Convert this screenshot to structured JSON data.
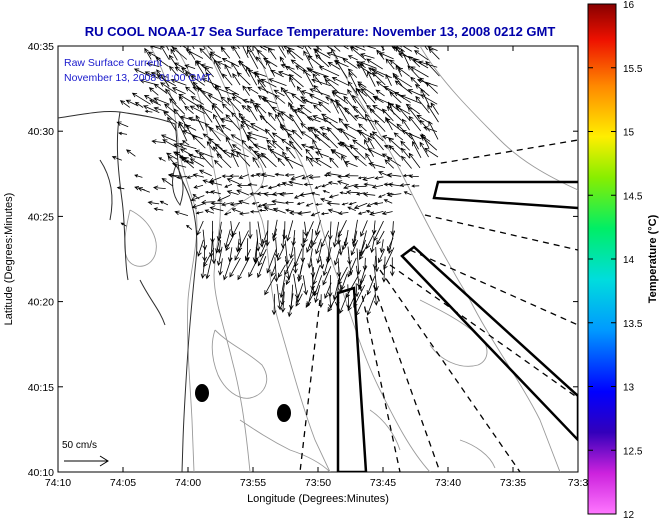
{
  "title": "RU COOL  NOAA-17  Sea Surface Temperature:  November 13, 2008 0212 GMT",
  "legend": {
    "line1": "Raw Surface Current",
    "line2": "November 13, 2008 01:00 GMT"
  },
  "axes": {
    "xlabel": "Longitude (Degrees:Minutes)",
    "ylabel": "Latitude (Degrees:Minutes)",
    "x_ticks": [
      "74:10",
      "74:05",
      "74:00",
      "73:55",
      "73:50",
      "73:45",
      "73:40",
      "73:35",
      "73:3"
    ],
    "y_ticks": [
      "40:35",
      "40:30",
      "40:25",
      "40:20",
      "40:15",
      "40:10"
    ]
  },
  "scale": {
    "label": "50 cm/s"
  },
  "colorbar": {
    "label": "Temperature (°C)",
    "ticks": [
      "16",
      "15.5",
      "15",
      "14.5",
      "14",
      "13.5",
      "13",
      "12.5",
      "12"
    ]
  },
  "colors": {
    "title": "#0000aa",
    "legend_text": "#1a1acc",
    "coast": "#333333",
    "bathy": "#999999",
    "vectors": "#000000"
  }
}
